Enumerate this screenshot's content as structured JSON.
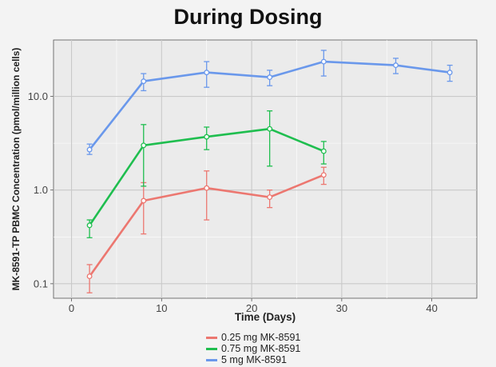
{
  "title": "During Dosing",
  "chart_data": {
    "type": "line",
    "title": "During Dosing",
    "xlabel": "Time (Days)",
    "ylabel": "MK-8591-TP PBMC Concentration (pmol/million cells)",
    "xlim": [
      -2,
      45
    ],
    "ylim": [
      0.07,
      40
    ],
    "y_scale": "log",
    "x_ticks": [
      0,
      10,
      20,
      30,
      40
    ],
    "x_tick_labels": [
      "0",
      "10",
      "20",
      "30",
      "40"
    ],
    "y_ticks": [
      0.1,
      1,
      10
    ],
    "y_tick_labels": [
      "0.1",
      "1.0",
      "10.0"
    ],
    "grid": true,
    "legend_position": "bottom",
    "series": [
      {
        "name": "0.25 mg MK-8591",
        "color": "#ec7770",
        "points": [
          {
            "x": 2,
            "y": 0.12,
            "low": 0.08,
            "high": 0.16
          },
          {
            "x": 8,
            "y": 0.77,
            "low": 0.34,
            "high": 1.2
          },
          {
            "x": 15,
            "y": 1.05,
            "low": 0.48,
            "high": 1.6
          },
          {
            "x": 22,
            "y": 0.84,
            "low": 0.65,
            "high": 1.0
          },
          {
            "x": 28,
            "y": 1.45,
            "low": 1.15,
            "high": 1.75
          }
        ]
      },
      {
        "name": "0.75 mg MK-8591",
        "color": "#1fbe4f",
        "points": [
          {
            "x": 2,
            "y": 0.42,
            "low": 0.31,
            "high": 0.48
          },
          {
            "x": 8,
            "y": 3.0,
            "low": 1.1,
            "high": 5.0
          },
          {
            "x": 15,
            "y": 3.7,
            "low": 2.7,
            "high": 4.7
          },
          {
            "x": 22,
            "y": 4.5,
            "low": 1.8,
            "high": 7.0
          },
          {
            "x": 28,
            "y": 2.6,
            "low": 1.9,
            "high": 3.3
          }
        ]
      },
      {
        "name": "5 mg MK-8591",
        "color": "#6a98eb",
        "points": [
          {
            "x": 2,
            "y": 2.7,
            "low": 2.4,
            "high": 3.1
          },
          {
            "x": 8,
            "y": 14.5,
            "low": 11.5,
            "high": 17.5
          },
          {
            "x": 15,
            "y": 18.0,
            "low": 12.5,
            "high": 23.5
          },
          {
            "x": 22,
            "y": 16.0,
            "low": 13.0,
            "high": 19.0
          },
          {
            "x": 28,
            "y": 23.5,
            "low": 16.5,
            "high": 31.0
          },
          {
            "x": 36,
            "y": 21.5,
            "low": 17.5,
            "high": 25.5
          },
          {
            "x": 42,
            "y": 18.0,
            "low": 14.5,
            "high": 21.5
          }
        ]
      }
    ]
  }
}
